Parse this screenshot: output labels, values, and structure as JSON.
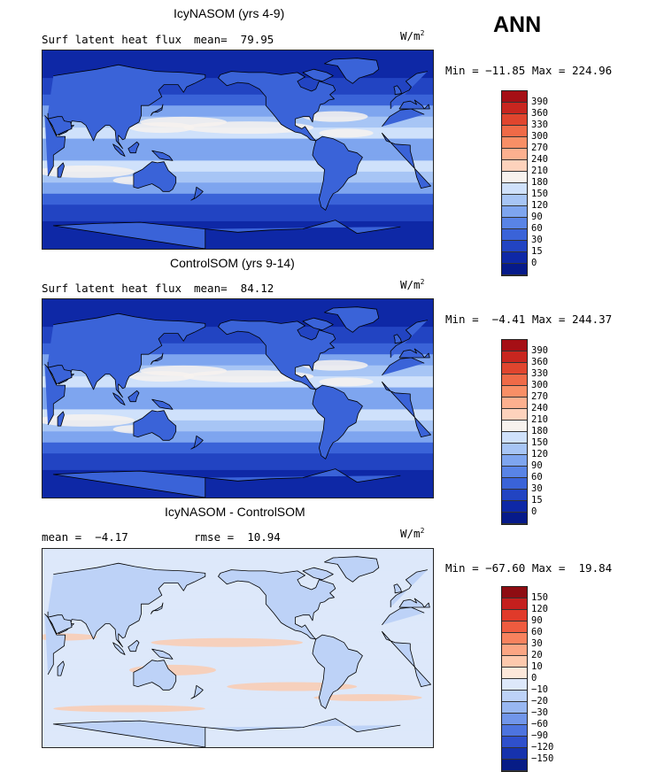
{
  "season": "ANN",
  "panels": [
    {
      "title": "IcyNASOM (yrs 4-9)",
      "left_text": "Surf latent heat flux",
      "mid_text": "mean=  79.95",
      "units": "W/m",
      "units_sup": "2",
      "minmax": "Min = −11.85 Max = 224.96",
      "type": "absolute",
      "colorbar": {
        "labels": [
          "390",
          "360",
          "330",
          "300",
          "270",
          "240",
          "210",
          "180",
          "150",
          "120",
          "90",
          "60",
          "30",
          "15",
          "0"
        ],
        "colors": [
          "#a50f15",
          "#c8261f",
          "#e0452e",
          "#ef6a47",
          "#f88f66",
          "#fcb08f",
          "#fdd2bc",
          "#f7f2ee",
          "#cfe1fb",
          "#a7c5f5",
          "#7ea5ef",
          "#5984e6",
          "#3a63d8",
          "#2244c2",
          "#0e28a6",
          "#061a8a"
        ]
      }
    },
    {
      "title": "ControlSOM (yrs 9-14)",
      "left_text": "Surf latent heat flux",
      "mid_text": "mean=  84.12",
      "units": "W/m",
      "units_sup": "2",
      "minmax": "Min =  −4.41 Max = 244.37",
      "type": "absolute",
      "colorbar": {
        "labels": [
          "390",
          "360",
          "330",
          "300",
          "270",
          "240",
          "210",
          "180",
          "150",
          "120",
          "90",
          "60",
          "30",
          "15",
          "0"
        ],
        "colors": [
          "#a50f15",
          "#c8261f",
          "#e0452e",
          "#ef6a47",
          "#f88f66",
          "#fcb08f",
          "#fdd2bc",
          "#f7f2ee",
          "#cfe1fb",
          "#a7c5f5",
          "#7ea5ef",
          "#5984e6",
          "#3a63d8",
          "#2244c2",
          "#0e28a6",
          "#061a8a"
        ]
      }
    },
    {
      "title": "IcyNASOM - ControlSOM",
      "left_text": "mean =  −4.17",
      "mid_text": "rmse =  10.94",
      "units": "W/m",
      "units_sup": "2",
      "minmax": "Min = −67.60 Max =  19.84",
      "type": "difference",
      "colorbar": {
        "labels": [
          "150",
          "120",
          "90",
          "60",
          "30",
          "20",
          "10",
          "0",
          "−10",
          "−20",
          "−30",
          "−60",
          "−90",
          "−120",
          "−150"
        ],
        "colors": [
          "#8e0c12",
          "#c41f1e",
          "#e03a2a",
          "#ef5b3f",
          "#f7825e",
          "#fba583",
          "#fdc9ad",
          "#fde8da",
          "#dde8fa",
          "#bdd2f7",
          "#98b7f1",
          "#7196ea",
          "#4d74df",
          "#2f50cc",
          "#1632ad",
          "#071c86"
        ]
      }
    }
  ],
  "colors": {
    "coastline": "#000000",
    "frame": "#222222"
  }
}
